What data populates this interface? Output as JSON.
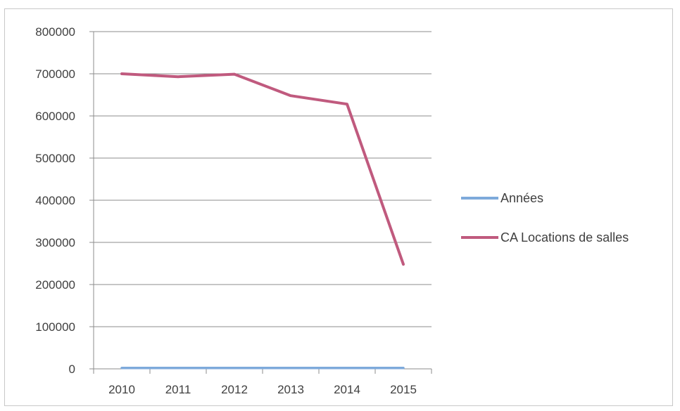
{
  "chart_data": {
    "type": "line",
    "categories": [
      "2010",
      "2011",
      "2012",
      "2013",
      "2014",
      "2015"
    ],
    "series": [
      {
        "name": "Années",
        "values": [
          2010,
          2011,
          2012,
          2013,
          2014,
          2015
        ],
        "color": "#7eaadb"
      },
      {
        "name": "CA Locations de salles",
        "values": [
          700000,
          693000,
          699000,
          648000,
          628000,
          248000
        ],
        "color": "#c05a7e"
      }
    ],
    "y_ticks": [
      "0",
      "100000",
      "200000",
      "300000",
      "400000",
      "500000",
      "600000",
      "700000",
      "800000"
    ],
    "ylim": [
      0,
      800000
    ],
    "grid": true,
    "legend_position": "right"
  }
}
